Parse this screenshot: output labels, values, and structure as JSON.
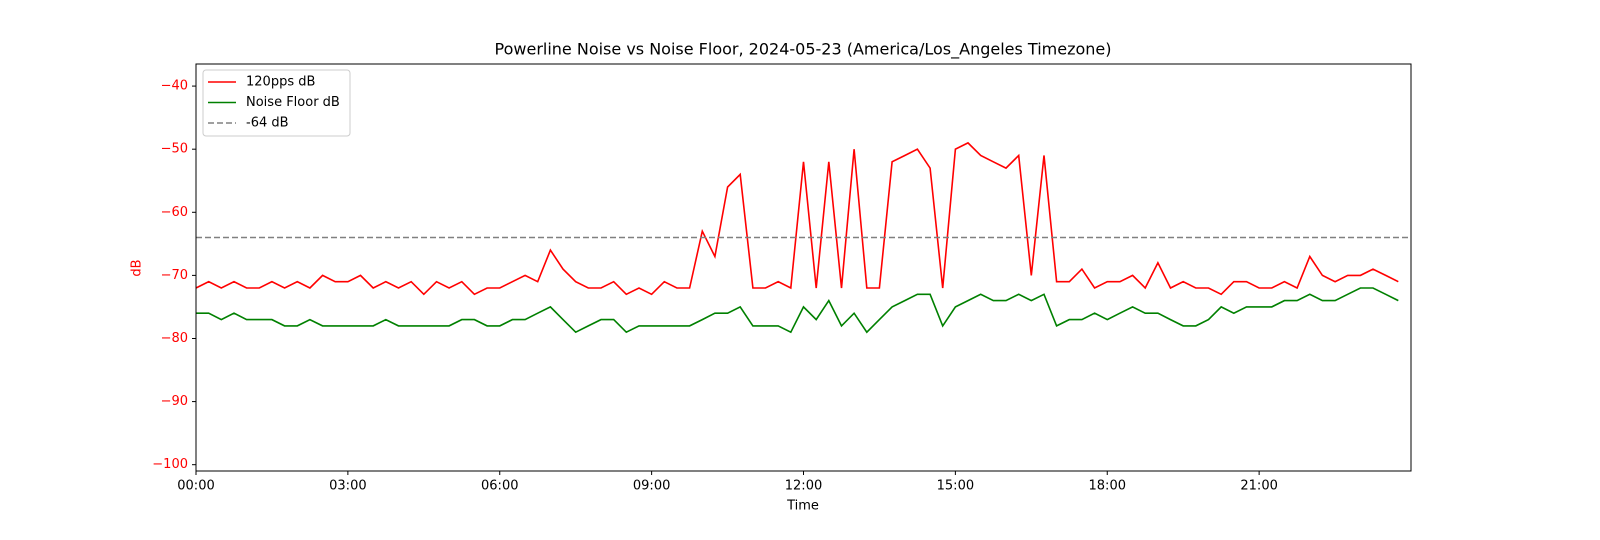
{
  "chart_data": {
    "type": "line",
    "title": "Powerline Noise vs Noise Floor, 2024-05-23 (America/Los_Angeles Timezone)",
    "xlabel": "Time",
    "ylabel": "dB",
    "ylabel_color": "#ff0000",
    "x": [
      "00:00",
      "00:15",
      "00:30",
      "00:45",
      "01:00",
      "01:15",
      "01:30",
      "01:45",
      "02:00",
      "02:15",
      "02:30",
      "02:45",
      "03:00",
      "03:15",
      "03:30",
      "03:45",
      "04:00",
      "04:15",
      "04:30",
      "04:45",
      "05:00",
      "05:15",
      "05:30",
      "05:45",
      "06:00",
      "06:15",
      "06:30",
      "06:45",
      "07:00",
      "07:15",
      "07:30",
      "07:45",
      "08:00",
      "08:15",
      "08:30",
      "08:45",
      "09:00",
      "09:15",
      "09:30",
      "09:45",
      "10:00",
      "10:15",
      "10:30",
      "10:45",
      "11:00",
      "11:15",
      "11:30",
      "11:45",
      "12:00",
      "12:15",
      "12:30",
      "12:45",
      "13:00",
      "13:15",
      "13:30",
      "13:45",
      "14:00",
      "14:15",
      "14:30",
      "14:45",
      "15:00",
      "15:15",
      "15:30",
      "15:45",
      "16:00",
      "16:15",
      "16:30",
      "16:45",
      "17:00",
      "17:15",
      "17:30",
      "17:45",
      "18:00",
      "18:15",
      "18:30",
      "18:45",
      "19:00",
      "19:15",
      "19:30",
      "19:45",
      "20:00",
      "20:15",
      "20:30",
      "20:45",
      "21:00",
      "21:15",
      "21:30",
      "21:45",
      "22:00",
      "22:15",
      "22:30",
      "22:45",
      "23:00",
      "23:15",
      "23:30",
      "23:45"
    ],
    "series": [
      {
        "name": "120pps dB",
        "color": "#ff0000",
        "values": [
          -72,
          -71,
          -72,
          -71,
          -72,
          -72,
          -71,
          -72,
          -71,
          -72,
          -70,
          -71,
          -71,
          -70,
          -72,
          -71,
          -72,
          -71,
          -73,
          -71,
          -72,
          -71,
          -73,
          -72,
          -72,
          -71,
          -70,
          -71,
          -66,
          -69,
          -71,
          -72,
          -72,
          -71,
          -73,
          -72,
          -73,
          -71,
          -72,
          -72,
          -63,
          -67,
          -56,
          -54,
          -72,
          -72,
          -71,
          -72,
          -52,
          -72,
          -52,
          -72,
          -50,
          -72,
          -72,
          -52,
          -51,
          -50,
          -53,
          -72,
          -50,
          -49,
          -51,
          -52,
          -53,
          -51,
          -70,
          -51,
          -71,
          -71,
          -69,
          -72,
          -71,
          -71,
          -70,
          -72,
          -68,
          -72,
          -71,
          -72,
          -72,
          -73,
          -71,
          -71,
          -72,
          -72,
          -71,
          -72,
          -67,
          -70,
          -71,
          -70,
          -70,
          -69,
          -70,
          -71
        ]
      },
      {
        "name": "Noise Floor dB",
        "color": "#008000",
        "values": [
          -76,
          -76,
          -77,
          -76,
          -77,
          -77,
          -77,
          -78,
          -78,
          -77,
          -78,
          -78,
          -78,
          -78,
          -78,
          -77,
          -78,
          -78,
          -78,
          -78,
          -78,
          -77,
          -77,
          -78,
          -78,
          -77,
          -77,
          -76,
          -75,
          -77,
          -79,
          -78,
          -77,
          -77,
          -79,
          -78,
          -78,
          -78,
          -78,
          -78,
          -77,
          -76,
          -76,
          -75,
          -78,
          -78,
          -78,
          -79,
          -75,
          -77,
          -74,
          -78,
          -76,
          -79,
          -77,
          -75,
          -74,
          -73,
          -73,
          -78,
          -75,
          -74,
          -73,
          -74,
          -74,
          -73,
          -74,
          -73,
          -78,
          -77,
          -77,
          -76,
          -77,
          -76,
          -75,
          -76,
          -76,
          -77,
          -78,
          -78,
          -77,
          -75,
          -76,
          -75,
          -75,
          -75,
          -74,
          -74,
          -73,
          -74,
          -74,
          -73,
          -72,
          -72,
          -73,
          -74
        ]
      }
    ],
    "hline": {
      "name": "-64 dB",
      "value": -64,
      "color": "#808080"
    },
    "xlim": [
      "00:00",
      "24:00"
    ],
    "xticks": [
      "00:00",
      "03:00",
      "06:00",
      "09:00",
      "12:00",
      "15:00",
      "18:00",
      "21:00"
    ],
    "ylim": [
      -101,
      -36.5
    ],
    "yticks": [
      {
        "value": -100,
        "label": "−100"
      },
      {
        "value": -90,
        "label": "−90"
      },
      {
        "value": -80,
        "label": "−80"
      },
      {
        "value": -70,
        "label": "−70"
      },
      {
        "value": -60,
        "label": "−60"
      },
      {
        "value": -50,
        "label": "−50"
      },
      {
        "value": -40,
        "label": "−40"
      }
    ],
    "legend": "upper left"
  }
}
